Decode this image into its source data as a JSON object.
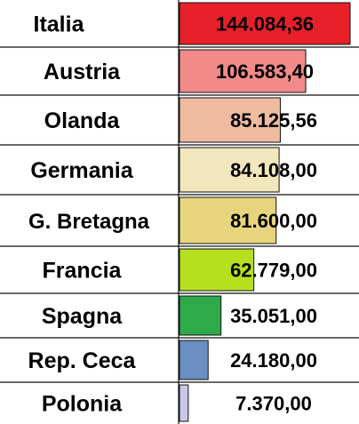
{
  "chart_data": {
    "type": "bar",
    "orientation": "horizontal",
    "categories": [
      "Italia",
      "Austria",
      "Olanda",
      "Germania",
      "G. Bretagna",
      "Francia",
      "Spagna",
      "Rep. Ceca",
      "Polonia"
    ],
    "values": [
      144084.36,
      106583.4,
      85125.56,
      84108.0,
      81600.0,
      62779.0,
      35051.0,
      24180.0,
      7370.0
    ],
    "value_labels": [
      "144.084,36",
      "106.583,40",
      "85.125,56",
      "84.108,00",
      "81.600,00",
      "62.779,00",
      "35.051,00",
      "24.180,00",
      "7.370,00"
    ],
    "bar_colors": [
      "#e8202a",
      "#f28a8a",
      "#eebba0",
      "#f1e6bc",
      "#e6d57c",
      "#b6e01e",
      "#2eaa48",
      "#6b8fc0",
      "#c8c8e6"
    ],
    "title": "",
    "xlabel": "",
    "ylabel": "",
    "xlim": [
      0,
      144084.36
    ],
    "grid": false,
    "legend": "none"
  }
}
